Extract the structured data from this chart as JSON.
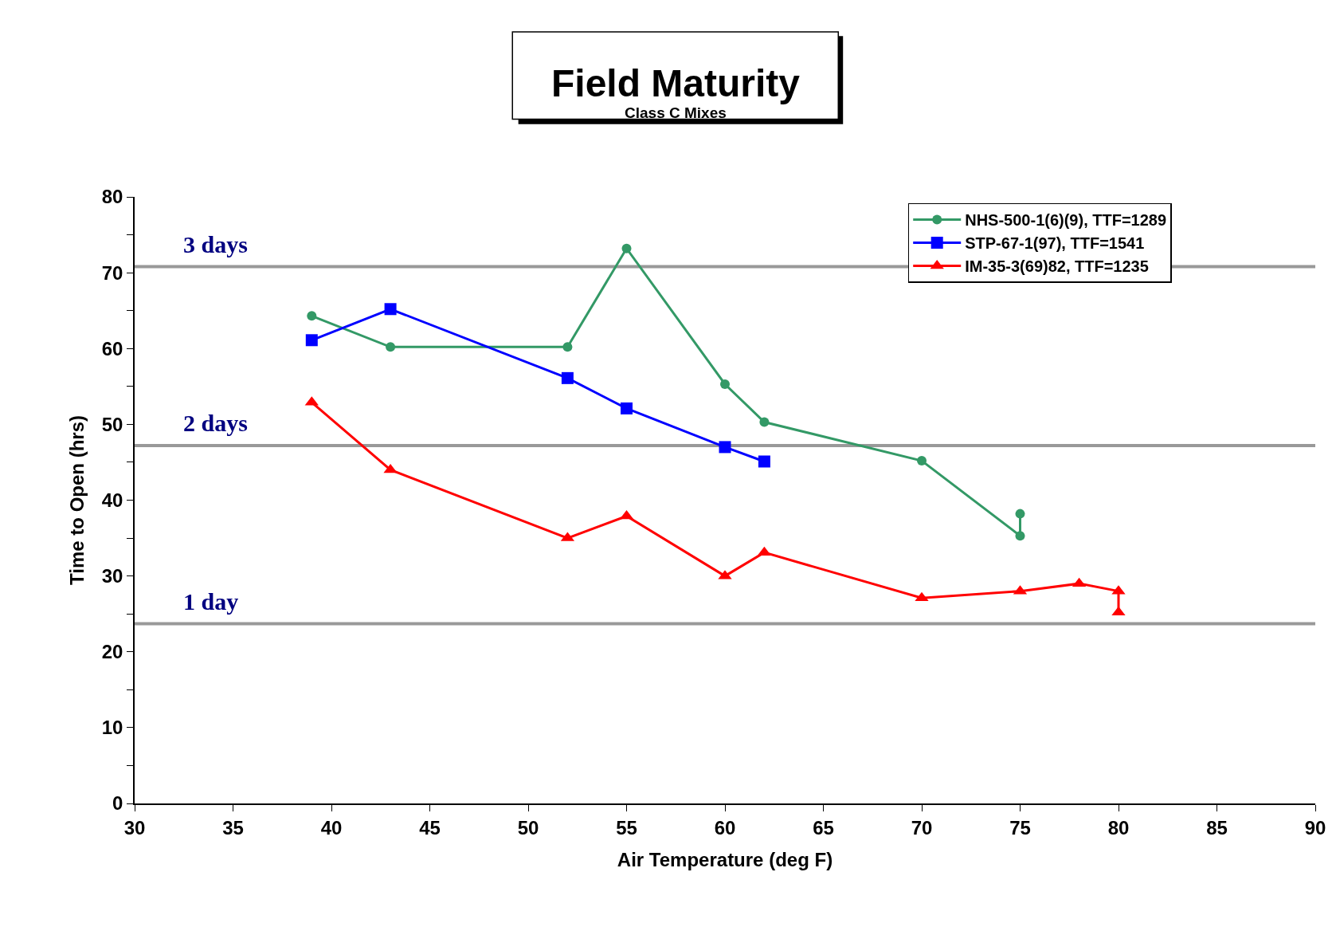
{
  "chart_data": {
    "type": "line",
    "title": "Field Maturity",
    "subtitle": "Class C Mixes",
    "xlabel": "Air Temperature (deg F)",
    "ylabel": "Time to Open (hrs)",
    "xlim": [
      30,
      90
    ],
    "xticks": [
      30,
      35,
      40,
      45,
      50,
      55,
      60,
      65,
      70,
      75,
      80,
      85,
      90
    ],
    "ylim": [
      0,
      80
    ],
    "yticks": [
      0,
      {
        "value": 5,
        "label": null
      },
      10,
      {
        "value": 15,
        "label": null
      },
      20,
      {
        "value": 25,
        "label": null
      },
      30,
      {
        "value": 35,
        "label": null
      },
      40,
      {
        "value": 45,
        "label": null
      },
      50,
      {
        "value": 55,
        "label": null
      },
      60,
      {
        "value": 65,
        "label": null
      },
      70,
      {
        "value": 75,
        "label": null
      },
      80
    ],
    "grid": false,
    "legend": "top right",
    "line_style": "solid",
    "series": [
      {
        "name": "NHS-500-1(6)(9), TTF=1289",
        "color": "#339966",
        "marker": "circle",
        "x": [
          39,
          43,
          52,
          55,
          60,
          62,
          70,
          75,
          75
        ],
        "values": [
          64.3,
          60.2,
          60.2,
          73.2,
          55.3,
          50.3,
          45.2,
          35.3,
          38.2
        ]
      },
      {
        "name": "STP-67-1(97), TTF=1541",
        "color": "#0000ff",
        "marker": "square",
        "x": [
          39,
          43,
          52,
          55,
          60,
          62
        ],
        "values": [
          61.1,
          65.2,
          56.1,
          52.1,
          47.0,
          45.1
        ]
      },
      {
        "name": "IM-35-3(69)82, TTF=1235",
        "color": "#ff0000",
        "marker": "triangle",
        "x": [
          39,
          43,
          52,
          55,
          60,
          62,
          70,
          75,
          78,
          80,
          80
        ],
        "values": [
          52.9,
          44.0,
          35.0,
          37.9,
          30.0,
          33.1,
          27.1,
          28.0,
          29.0,
          28.0,
          25.2
        ]
      }
    ],
    "ref_lines": [
      {
        "axis": "y",
        "value": 70.8,
        "label": "3 days",
        "color": "#999999"
      },
      {
        "axis": "y",
        "value": 47.2,
        "label": "2 days",
        "color": "#999999"
      },
      {
        "axis": "y",
        "value": 23.7,
        "label": "1 day",
        "color": "#999999"
      }
    ]
  }
}
